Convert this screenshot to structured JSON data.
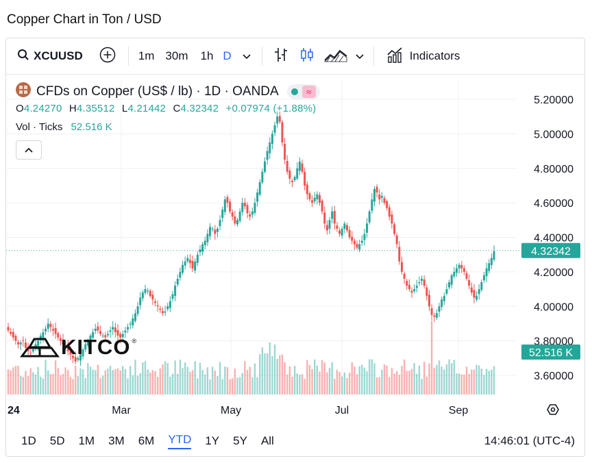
{
  "page_title": "Copper Chart in Ton / USD",
  "toolbar": {
    "symbol": "XCUUSD",
    "intervals": [
      "1m",
      "30m",
      "1h",
      "D"
    ],
    "active_interval": "D",
    "indicators_label": "Indicators"
  },
  "legend": {
    "title": "CFDs on Copper (US$ / lb) · 1D · OANDA",
    "o_label": "O",
    "o_value": "4.24270",
    "h_label": "H",
    "h_value": "4.35512",
    "l_label": "L",
    "l_value": "4.21442",
    "c_label": "C",
    "c_value": "4.32342",
    "change": "+0.07974 (+1.88%)",
    "vol_label": "Vol · Ticks",
    "vol_value": "52.516 K"
  },
  "logo_text": "KITCO",
  "bottom": {
    "ranges": [
      "1D",
      "5D",
      "1M",
      "3M",
      "6M",
      "YTD",
      "1Y",
      "5Y",
      "All"
    ],
    "active_range": "YTD",
    "time": "14:46:01 (UTC-4)"
  },
  "colors": {
    "up": "#26a69a",
    "down": "#ef5350",
    "accent": "#2962ff",
    "last_price": "#26a69a"
  },
  "chart_data": {
    "type": "candlestick",
    "title": "CFDs on Copper (US$ / lb) · 1D · OANDA",
    "y_ticks": [
      "5.20000",
      "5.00000",
      "4.80000",
      "4.60000",
      "4.40000",
      "4.20000",
      "4.00000",
      "3.80000",
      "3.60000"
    ],
    "ylim": [
      3.5,
      5.25
    ],
    "x_ticks": [
      "2024",
      "Mar",
      "May",
      "Jul",
      "Sep"
    ],
    "last_price": 4.32342,
    "last_price_label": "4.32342",
    "last_volume_label": "52.516 K",
    "close_series": [
      3.86,
      3.84,
      3.82,
      3.8,
      3.78,
      3.79,
      3.8,
      3.76,
      3.74,
      3.73,
      3.75,
      3.78,
      3.8,
      3.83,
      3.85,
      3.87,
      3.9,
      3.88,
      3.86,
      3.84,
      3.82,
      3.8,
      3.78,
      3.76,
      3.74,
      3.72,
      3.7,
      3.68,
      3.7,
      3.72,
      3.75,
      3.78,
      3.8,
      3.83,
      3.85,
      3.87,
      3.86,
      3.84,
      3.83,
      3.82,
      3.84,
      3.86,
      3.88,
      3.85,
      3.83,
      3.82,
      3.84,
      3.86,
      3.88,
      3.9,
      3.93,
      3.96,
      4.0,
      4.05,
      4.08,
      4.1,
      4.09,
      4.06,
      4.04,
      4.02,
      4.0,
      3.98,
      3.96,
      3.97,
      4.0,
      4.03,
      4.07,
      4.12,
      4.16,
      4.2,
      4.24,
      4.26,
      4.28,
      4.25,
      4.22,
      4.26,
      4.3,
      4.33,
      4.36,
      4.38,
      4.42,
      4.46,
      4.45,
      4.42,
      4.45,
      4.5,
      4.56,
      4.62,
      4.6,
      4.55,
      4.52,
      4.48,
      4.5,
      4.55,
      4.6,
      4.58,
      4.54,
      4.52,
      4.55,
      4.6,
      4.66,
      4.72,
      4.78,
      4.84,
      4.9,
      4.95,
      5.0,
      5.05,
      5.1,
      5.07,
      4.95,
      4.85,
      4.78,
      4.74,
      4.72,
      4.75,
      4.8,
      4.84,
      4.78,
      4.7,
      4.65,
      4.62,
      4.6,
      4.63,
      4.65,
      4.6,
      4.55,
      4.48,
      4.44,
      4.5,
      4.55,
      4.48,
      4.45,
      4.42,
      4.45,
      4.48,
      4.44,
      4.4,
      4.38,
      4.36,
      4.34,
      4.36,
      4.38,
      4.42,
      4.48,
      4.55,
      4.62,
      4.68,
      4.66,
      4.62,
      4.64,
      4.6,
      4.57,
      4.52,
      4.48,
      4.42,
      4.36,
      4.26,
      4.2,
      4.16,
      4.12,
      4.1,
      4.08,
      4.1,
      4.12,
      4.14,
      4.16,
      4.12,
      4.06,
      4.0,
      3.95,
      3.94,
      3.96,
      4.0,
      4.04,
      4.06,
      4.1,
      4.14,
      4.18,
      4.2,
      4.22,
      4.24,
      4.22,
      4.2,
      4.16,
      4.12,
      4.08,
      4.05,
      4.06,
      4.1,
      4.14,
      4.18,
      4.22,
      4.25,
      4.28,
      4.32
    ]
  }
}
